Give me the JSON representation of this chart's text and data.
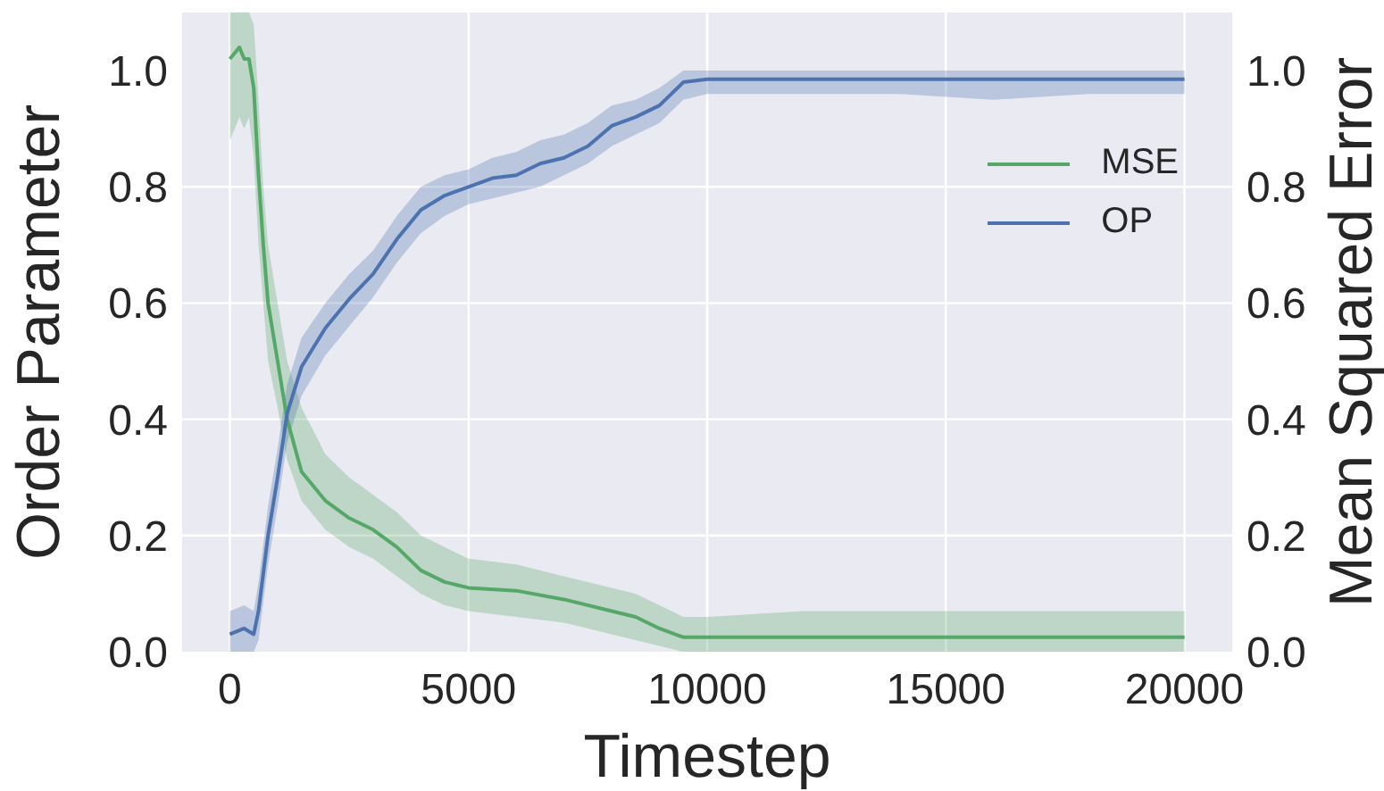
{
  "chart_data": {
    "type": "line",
    "xlabel": "Timestep",
    "ylabel": "Order Parameter",
    "y2label": "Mean Squared Error",
    "xlim": [
      -1000,
      21000
    ],
    "xticks": [
      0,
      5000,
      10000,
      15000,
      20000
    ],
    "ylim": [
      0,
      1.1
    ],
    "yticks": [
      {
        "value": 0,
        "label": "0.0"
      },
      0.2,
      0.4,
      0.6,
      0.8,
      {
        "value": 1,
        "label": "1.0"
      }
    ],
    "y2lim": [
      0,
      1.1
    ],
    "y2ticks": [
      {
        "value": 0,
        "label": "0.0"
      },
      0.2,
      0.4,
      0.6,
      0.8,
      {
        "value": 1,
        "label": "1.0"
      }
    ],
    "grid": true,
    "legend": "top right",
    "marker": "none",
    "line_style": "solid",
    "series": [
      {
        "name": "MSE",
        "color": "#55a868",
        "x": [
          0,
          100,
          200,
          300,
          400,
          500,
          600,
          700,
          800,
          1000,
          1200,
          1500,
          2000,
          2500,
          3000,
          3500,
          4000,
          4500,
          5000,
          6000,
          7000,
          8000,
          8500,
          9000,
          9500,
          10000,
          12000,
          14000,
          16000,
          18000,
          20000
        ],
        "values": [
          1.02,
          1.03,
          1.04,
          1.02,
          1.02,
          0.97,
          0.82,
          0.7,
          0.6,
          0.5,
          0.4,
          0.31,
          0.26,
          0.23,
          0.21,
          0.18,
          0.14,
          0.12,
          0.11,
          0.105,
          0.09,
          0.07,
          0.06,
          0.04,
          0.025,
          0.025,
          0.025,
          0.025,
          0.025,
          0.025,
          0.025
        ],
        "lower": [
          0.88,
          0.9,
          0.92,
          0.9,
          0.92,
          0.85,
          0.7,
          0.6,
          0.5,
          0.42,
          0.33,
          0.26,
          0.21,
          0.18,
          0.16,
          0.13,
          0.1,
          0.08,
          0.07,
          0.06,
          0.05,
          0.03,
          0.02,
          0.01,
          0.0,
          0.0,
          0.0,
          0.0,
          0.0,
          0.0,
          0.0
        ],
        "upper": [
          1.1,
          1.1,
          1.1,
          1.1,
          1.1,
          1.08,
          0.95,
          0.8,
          0.7,
          0.6,
          0.5,
          0.42,
          0.34,
          0.3,
          0.27,
          0.24,
          0.2,
          0.18,
          0.16,
          0.15,
          0.13,
          0.11,
          0.1,
          0.08,
          0.06,
          0.06,
          0.07,
          0.07,
          0.07,
          0.07,
          0.07
        ]
      },
      {
        "name": "OP",
        "color": "#4c72b0",
        "x": [
          0,
          300,
          500,
          600,
          800,
          1000,
          1200,
          1500,
          2000,
          2500,
          3000,
          3500,
          4000,
          4500,
          5000,
          5500,
          6000,
          6500,
          7000,
          7500,
          8000,
          8500,
          9000,
          9500,
          10000,
          12000,
          14000,
          16000,
          18000,
          20000
        ],
        "values": [
          0.03,
          0.04,
          0.03,
          0.07,
          0.2,
          0.3,
          0.41,
          0.49,
          0.557,
          0.607,
          0.65,
          0.71,
          0.76,
          0.785,
          0.8,
          0.815,
          0.82,
          0.84,
          0.85,
          0.87,
          0.905,
          0.92,
          0.94,
          0.98,
          0.985,
          0.985,
          0.985,
          0.985,
          0.985,
          0.985
        ],
        "lower": [
          0.0,
          0.0,
          0.0,
          0.02,
          0.15,
          0.25,
          0.36,
          0.44,
          0.51,
          0.56,
          0.61,
          0.67,
          0.72,
          0.75,
          0.77,
          0.78,
          0.79,
          0.8,
          0.82,
          0.84,
          0.87,
          0.89,
          0.91,
          0.95,
          0.96,
          0.96,
          0.96,
          0.95,
          0.96,
          0.96
        ],
        "upper": [
          0.07,
          0.08,
          0.07,
          0.12,
          0.25,
          0.35,
          0.46,
          0.54,
          0.6,
          0.65,
          0.69,
          0.75,
          0.8,
          0.82,
          0.83,
          0.85,
          0.86,
          0.88,
          0.89,
          0.91,
          0.94,
          0.95,
          0.97,
          1.0,
          1.0,
          1.0,
          1.0,
          1.0,
          1.0,
          1.0
        ]
      }
    ]
  }
}
